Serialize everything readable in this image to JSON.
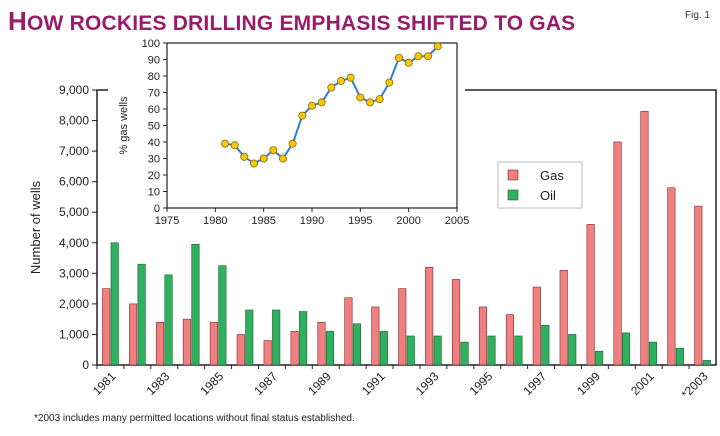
{
  "title_first": "H",
  "title_rest": "OW ROCKIES DRILLING EMPHASIS SHIFTED TO GAS",
  "fig_label": "Fig. 1",
  "footnote": "*2003 includes many permitted locations without final status established.",
  "colors": {
    "title": "#9b1b6b",
    "gas": "#f08080",
    "oil": "#2fb05e",
    "line": "#2d7fd1",
    "marker": "#f5c60d"
  },
  "chart_data": [
    {
      "type": "bar",
      "ylabel": "Number of wells",
      "ylim": [
        0,
        9000
      ],
      "yticks": [
        "0",
        "1,000",
        "2,000",
        "3,000",
        "4,000",
        "5,000",
        "6,000",
        "7,000",
        "8,000",
        "9,000"
      ],
      "categories": [
        "1981",
        "1982",
        "1983",
        "1984",
        "1985",
        "1986",
        "1987",
        "1988",
        "1989",
        "1990",
        "1991",
        "1992",
        "1993",
        "1994",
        "1995",
        "1996",
        "1997",
        "1998",
        "1999",
        "2000",
        "2001",
        "2002",
        "*2003"
      ],
      "xtick_labels": [
        "1981",
        "",
        "1983",
        "",
        "1985",
        "",
        "1987",
        "",
        "1989",
        "",
        "1991",
        "",
        "1993",
        "",
        "1995",
        "",
        "1997",
        "",
        "1999",
        "",
        "2001",
        "",
        "*2003"
      ],
      "legend": "center-right",
      "series": [
        {
          "name": "Gas",
          "values": [
            2500,
            2000,
            1400,
            1500,
            1400,
            1000,
            800,
            1100,
            1400,
            2200,
            1900,
            2500,
            3200,
            2800,
            1900,
            1650,
            2550,
            3100,
            4600,
            7300,
            8300,
            5800,
            5200
          ]
        },
        {
          "name": "Oil",
          "values": [
            4000,
            3300,
            2950,
            3950,
            3250,
            1800,
            1800,
            1750,
            1100,
            1350,
            1100,
            950,
            950,
            750,
            950,
            950,
            1300,
            1000,
            450,
            1050,
            750,
            550,
            150
          ]
        }
      ]
    },
    {
      "type": "line",
      "ylabel": "% gas wells",
      "xlim": [
        1975,
        2005
      ],
      "ylim": [
        0,
        100
      ],
      "xticks": [
        "1975",
        "1980",
        "1985",
        "1990",
        "1995",
        "2000",
        "2005"
      ],
      "yticks": [
        "0",
        "10",
        "20",
        "30",
        "40",
        "50",
        "60",
        "70",
        "80",
        "90",
        "100"
      ],
      "x": [
        1981,
        1982,
        1983,
        1984,
        1985,
        1986,
        1987,
        1988,
        1989,
        1990,
        1991,
        1992,
        1993,
        1994,
        1995,
        1996,
        1997,
        1998,
        1999,
        2000,
        2001,
        2002,
        2003
      ],
      "y": [
        39,
        38,
        31,
        27,
        30,
        35,
        30,
        39,
        56,
        62,
        64,
        73,
        77,
        79,
        67,
        64,
        66,
        76,
        91,
        88,
        92,
        92,
        98
      ]
    }
  ]
}
